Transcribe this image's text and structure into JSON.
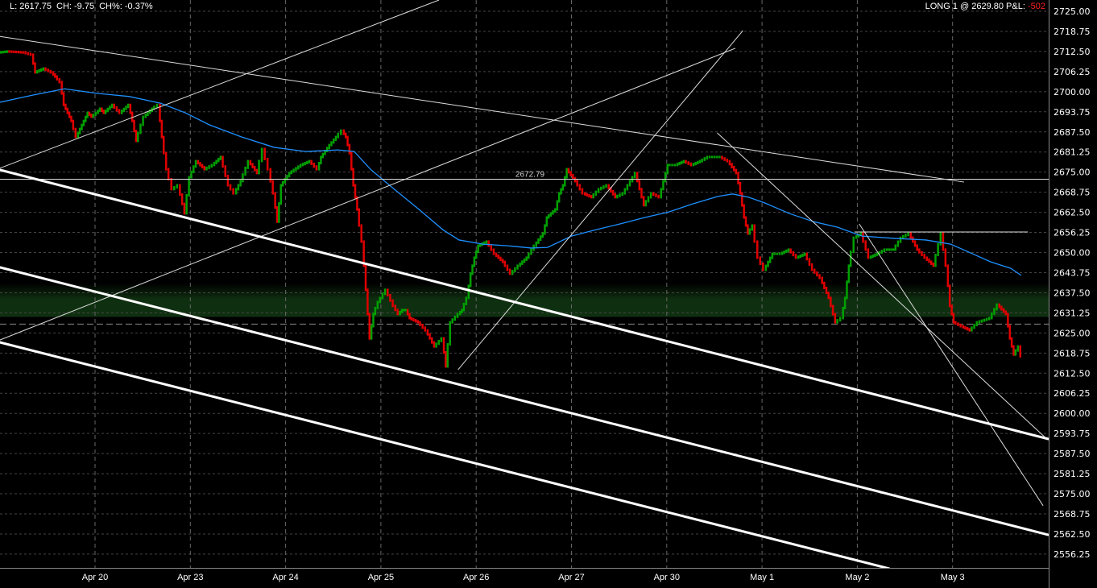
{
  "header": {
    "last": "L: 2617.75",
    "change": "CH: -9.75",
    "change_pct": "CH%: -0.37%",
    "position": "LONG 1 @ 2629.80 P&L:",
    "pnl": "-502"
  },
  "colors": {
    "background": "#000000",
    "up": "#00a000",
    "down": "#e00000",
    "ma": "#1e90ff",
    "drawings": "#ffffff",
    "grid": "#444444",
    "zone": "#0f3010",
    "pnl": "#ff2020"
  },
  "chart_data": {
    "type": "candlestick",
    "x_axis": {
      "tick_labels": [
        "Apr 20",
        "Apr 23",
        "Apr 24",
        "Apr 25",
        "Apr 26",
        "Apr 27",
        "Apr 30",
        "May 1",
        "May 2",
        "May 3"
      ],
      "range_sessions": [
        -1.0,
        10.0
      ]
    },
    "y_axis": {
      "side": "right",
      "range": [
        2553.0,
        2728.5
      ],
      "tick_labels": [
        "2725.00",
        "2718.75",
        "2712.50",
        "2706.25",
        "2700.00",
        "2693.75",
        "2687.50",
        "2681.25",
        "2675.00",
        "2668.75",
        "2662.50",
        "2656.25",
        "2650.00",
        "2643.75",
        "2637.50",
        "2631.25",
        "2625.00",
        "2618.75",
        "2612.50",
        "2606.25",
        "2600.00",
        "2593.75",
        "2587.50",
        "2581.25",
        "2575.00",
        "2568.75",
        "2562.50",
        "2556.25"
      ]
    },
    "grid": true,
    "price_series": [
      [
        -1.0,
        2712.2
      ],
      [
        -0.91,
        2712.5
      ],
      [
        -0.74,
        2712.2
      ],
      [
        -0.66,
        2711.5
      ],
      [
        -0.62,
        2706.0
      ],
      [
        -0.53,
        2707.2
      ],
      [
        -0.45,
        2706.0
      ],
      [
        -0.41,
        2704.7
      ],
      [
        -0.36,
        2703.0
      ],
      [
        -0.32,
        2695.9
      ],
      [
        -0.28,
        2693.4
      ],
      [
        -0.24,
        2690.9
      ],
      [
        -0.19,
        2685.9
      ],
      [
        -0.15,
        2688.4
      ],
      [
        -0.11,
        2690.9
      ],
      [
        -0.07,
        2693.4
      ],
      [
        -0.03,
        2692.2
      ],
      [
        0.02,
        2693.4
      ],
      [
        0.06,
        2694.7
      ],
      [
        0.1,
        2693.4
      ],
      [
        0.19,
        2695.9
      ],
      [
        0.27,
        2693.4
      ],
      [
        0.36,
        2695.9
      ],
      [
        0.4,
        2690.9
      ],
      [
        0.44,
        2684.7
      ],
      [
        0.52,
        2692.2
      ],
      [
        0.61,
        2694.7
      ],
      [
        0.67,
        2695.9
      ],
      [
        0.71,
        2685.9
      ],
      [
        0.76,
        2675.9
      ],
      [
        0.82,
        2669.7
      ],
      [
        0.88,
        2670.9
      ],
      [
        0.95,
        2662.2
      ],
      [
        1.0,
        2673.4
      ],
      [
        1.07,
        2678.4
      ],
      [
        1.16,
        2675.9
      ],
      [
        1.24,
        2677.2
      ],
      [
        1.33,
        2679.7
      ],
      [
        1.41,
        2670.9
      ],
      [
        1.47,
        2668.4
      ],
      [
        1.54,
        2672.2
      ],
      [
        1.62,
        2678.4
      ],
      [
        1.71,
        2674.7
      ],
      [
        1.77,
        2682.2
      ],
      [
        1.83,
        2675.9
      ],
      [
        1.88,
        2668.4
      ],
      [
        1.92,
        2659.6
      ],
      [
        1.96,
        2670.9
      ],
      [
        2.05,
        2674.7
      ],
      [
        2.17,
        2677.2
      ],
      [
        2.26,
        2678.4
      ],
      [
        2.34,
        2675.9
      ],
      [
        2.38,
        2679.7
      ],
      [
        2.47,
        2683.4
      ],
      [
        2.54,
        2685.9
      ],
      [
        2.6,
        2687.9
      ],
      [
        2.64,
        2685.9
      ],
      [
        2.68,
        2680.9
      ],
      [
        2.72,
        2670.9
      ],
      [
        2.76,
        2663.4
      ],
      [
        2.81,
        2653.4
      ],
      [
        2.85,
        2638.4
      ],
      [
        2.89,
        2623.3
      ],
      [
        2.93,
        2630.9
      ],
      [
        2.98,
        2634.6
      ],
      [
        3.06,
        2638.4
      ],
      [
        3.14,
        2633.4
      ],
      [
        3.19,
        2630.9
      ],
      [
        3.23,
        2632.1
      ],
      [
        3.27,
        2632.1
      ],
      [
        3.31,
        2629.6
      ],
      [
        3.4,
        2628.3
      ],
      [
        3.48,
        2625.8
      ],
      [
        3.57,
        2620.8
      ],
      [
        3.65,
        2623.3
      ],
      [
        3.69,
        2614.6
      ],
      [
        3.74,
        2628.3
      ],
      [
        3.82,
        2630.9
      ],
      [
        3.86,
        2632.1
      ],
      [
        3.91,
        2635.9
      ],
      [
        3.95,
        2643.4
      ],
      [
        3.99,
        2648.4
      ],
      [
        4.03,
        2652.1
      ],
      [
        4.12,
        2653.4
      ],
      [
        4.2,
        2649.6
      ],
      [
        4.29,
        2647.1
      ],
      [
        4.37,
        2643.4
      ],
      [
        4.45,
        2645.9
      ],
      [
        4.54,
        2648.4
      ],
      [
        4.62,
        2652.1
      ],
      [
        4.71,
        2655.9
      ],
      [
        4.75,
        2660.9
      ],
      [
        4.84,
        2663.4
      ],
      [
        4.88,
        2668.4
      ],
      [
        4.92,
        2670.9
      ],
      [
        4.96,
        2675.9
      ],
      [
        5.05,
        2672.2
      ],
      [
        5.13,
        2668.4
      ],
      [
        5.22,
        2667.2
      ],
      [
        5.3,
        2669.7
      ],
      [
        5.38,
        2670.9
      ],
      [
        5.47,
        2667.2
      ],
      [
        5.55,
        2668.4
      ],
      [
        5.68,
        2674.7
      ],
      [
        5.77,
        2664.7
      ],
      [
        5.85,
        2668.4
      ],
      [
        5.93,
        2667.2
      ],
      [
        6.02,
        2677.2
      ],
      [
        6.1,
        2677.2
      ],
      [
        6.19,
        2678.4
      ],
      [
        6.27,
        2677.2
      ],
      [
        6.36,
        2678.4
      ],
      [
        6.44,
        2679.7
      ],
      [
        6.57,
        2679.7
      ],
      [
        6.65,
        2678.4
      ],
      [
        6.74,
        2674.7
      ],
      [
        6.78,
        2668.4
      ],
      [
        6.82,
        2660.9
      ],
      [
        6.86,
        2655.9
      ],
      [
        6.91,
        2658.4
      ],
      [
        6.97,
        2648.4
      ],
      [
        7.03,
        2644.6
      ],
      [
        7.12,
        2649.6
      ],
      [
        7.2,
        2649.6
      ],
      [
        7.29,
        2650.9
      ],
      [
        7.37,
        2648.4
      ],
      [
        7.46,
        2649.6
      ],
      [
        7.54,
        2644.6
      ],
      [
        7.62,
        2642.1
      ],
      [
        7.71,
        2635.9
      ],
      [
        7.78,
        2628.3
      ],
      [
        7.84,
        2629.6
      ],
      [
        7.88,
        2635.9
      ],
      [
        7.92,
        2645.9
      ],
      [
        7.98,
        2654.6
      ],
      [
        8.05,
        2655.9
      ],
      [
        8.13,
        2648.4
      ],
      [
        8.22,
        2649.6
      ],
      [
        8.3,
        2650.9
      ],
      [
        8.39,
        2650.9
      ],
      [
        8.47,
        2654.6
      ],
      [
        8.55,
        2655.9
      ],
      [
        8.64,
        2650.9
      ],
      [
        8.72,
        2648.4
      ],
      [
        8.81,
        2645.9
      ],
      [
        8.89,
        2655.9
      ],
      [
        8.94,
        2645.9
      ],
      [
        8.98,
        2633.4
      ],
      [
        9.02,
        2628.3
      ],
      [
        9.1,
        2627.1
      ],
      [
        9.19,
        2625.8
      ],
      [
        9.27,
        2628.3
      ],
      [
        9.4,
        2629.6
      ],
      [
        9.48,
        2633.8
      ],
      [
        9.57,
        2630.9
      ],
      [
        9.61,
        2623.3
      ],
      [
        9.65,
        2618.3
      ],
      [
        9.7,
        2620.8
      ],
      [
        9.72,
        2617.75
      ]
    ],
    "moving_average": [
      [
        -1.0,
        2696.7
      ],
      [
        -0.66,
        2698.9
      ],
      [
        -0.32,
        2700.9
      ],
      [
        0.02,
        2699.5
      ],
      [
        0.36,
        2698.5
      ],
      [
        0.69,
        2696.4
      ],
      [
        0.95,
        2693.4
      ],
      [
        1.2,
        2689.7
      ],
      [
        1.54,
        2685.9
      ],
      [
        1.88,
        2682.7
      ],
      [
        2.21,
        2681.4
      ],
      [
        2.55,
        2681.9
      ],
      [
        2.72,
        2681.4
      ],
      [
        2.89,
        2675.9
      ],
      [
        3.14,
        2669.7
      ],
      [
        3.4,
        2663.4
      ],
      [
        3.65,
        2657.1
      ],
      [
        3.82,
        2653.9
      ],
      [
        4.07,
        2652.6
      ],
      [
        4.33,
        2652.1
      ],
      [
        4.58,
        2651.4
      ],
      [
        4.75,
        2651.6
      ],
      [
        5.0,
        2655.1
      ],
      [
        5.26,
        2657.1
      ],
      [
        5.51,
        2658.9
      ],
      [
        5.77,
        2660.9
      ],
      [
        6.02,
        2662.6
      ],
      [
        6.27,
        2665.1
      ],
      [
        6.53,
        2667.4
      ],
      [
        6.69,
        2668.2
      ],
      [
        6.86,
        2667.2
      ],
      [
        7.03,
        2665.4
      ],
      [
        7.29,
        2662.1
      ],
      [
        7.54,
        2659.6
      ],
      [
        7.79,
        2657.9
      ],
      [
        8.05,
        2655.1
      ],
      [
        8.39,
        2654.4
      ],
      [
        8.72,
        2653.9
      ],
      [
        8.98,
        2652.6
      ],
      [
        9.15,
        2650.4
      ],
      [
        9.4,
        2647.1
      ],
      [
        9.61,
        2645.1
      ],
      [
        9.72,
        2642.9
      ]
    ],
    "horizontal_line": {
      "price": 2672.79,
      "label": "2672.79"
    },
    "reference_line_price": 2627.75,
    "zone": [
      2630.0,
      2638.5
    ],
    "trendlines_thin": [
      [
        [
          -1.0,
          2717.2
        ],
        [
          9.12,
          2671.9
        ]
      ],
      [
        [
          -1.0,
          2676.2
        ],
        [
          3.61,
          2728.5
        ]
      ],
      [
        [
          -1.0,
          2622.8
        ],
        [
          6.72,
          2713.5
        ]
      ],
      [
        [
          3.81,
          2613.6
        ],
        [
          6.8,
          2719.0
        ]
      ],
      [
        [
          6.53,
          2687.2
        ],
        [
          9.99,
          2592.0
        ]
      ],
      [
        [
          8.02,
          2658.9
        ],
        [
          9.95,
          2571.3
        ]
      ],
      [
        [
          7.97,
          2656.4
        ],
        [
          9.79,
          2656.4
        ]
      ]
    ],
    "trendlines_thick": [
      [
        [
          -1.0,
          2675.7
        ],
        [
          10.01,
          2592.0
        ]
      ],
      [
        [
          -1.0,
          2645.4
        ],
        [
          10.01,
          2562.2
        ]
      ],
      [
        [
          -1.0,
          2622.1
        ],
        [
          8.34,
          2551.7
        ]
      ]
    ]
  }
}
